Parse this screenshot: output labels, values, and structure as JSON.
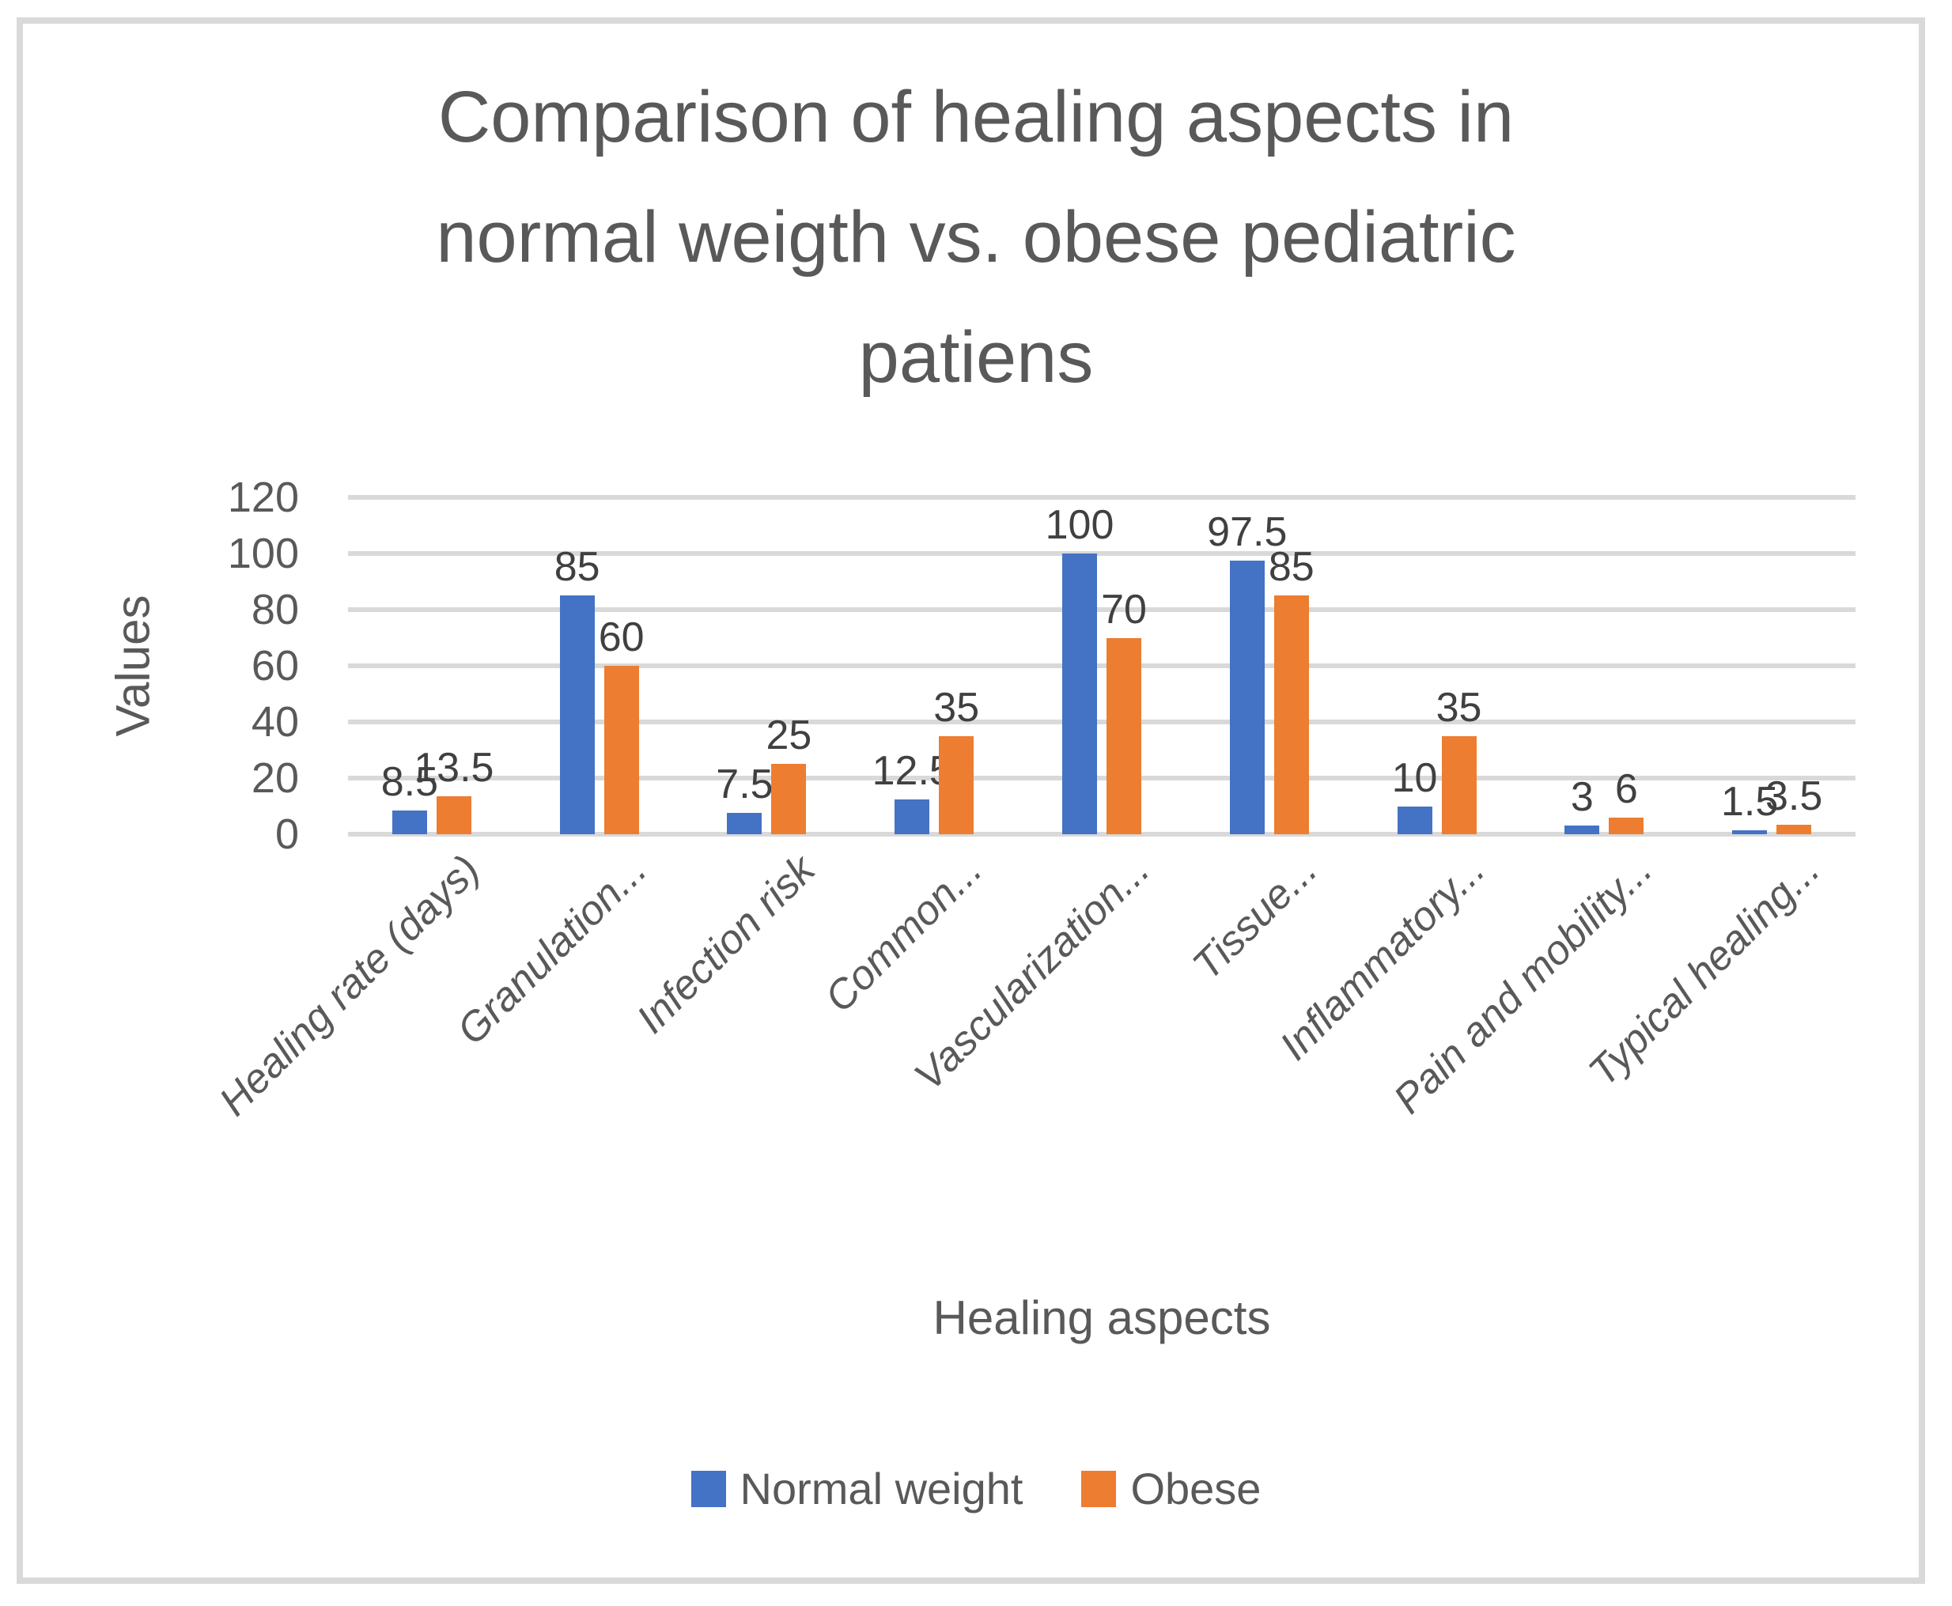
{
  "window": {
    "background": "#FFFFFF",
    "border_color": "#D9D9D9"
  },
  "title": {
    "text": "Comparison of healing aspects in normal weigth vs. obese pediatric patiens",
    "lines": [
      "Comparison of healing aspects in",
      "normal weigth vs. obese pediatric",
      "patiens"
    ]
  },
  "legend": {
    "position": "bottom",
    "items": [
      {
        "label": "Normal weight",
        "color": "#4472C4"
      },
      {
        "label": "Obese",
        "color": "#ED7D31"
      }
    ]
  },
  "colors": {
    "series_blue": "#4472C4",
    "series_orange": "#ED7D31",
    "gridline": "#D9D9D9",
    "axis_text": "#595959",
    "data_label_text": "#404040"
  },
  "chart_data": {
    "type": "bar",
    "title": "Comparison of healing aspects in normal weigth vs. obese pediatric patiens",
    "categories": [
      "Healing rate (days)",
      "Granulation...",
      "Infection risk",
      "Common...",
      "Vascularization...",
      "Tissue...",
      "Inflammatory...",
      "Pain and mobility...",
      "Typical healing..."
    ],
    "series": [
      {
        "name": "Normal weight",
        "color": "#4472C4",
        "values": [
          8.5,
          85,
          7.5,
          12.5,
          100,
          97.5,
          10,
          3,
          1.5
        ]
      },
      {
        "name": "Obese",
        "color": "#ED7D31",
        "values": [
          13.5,
          60,
          25,
          35,
          70,
          85,
          35,
          6,
          3.5
        ]
      }
    ],
    "xlabel": "Healing aspects",
    "ylabel": "Values",
    "ylim": [
      0,
      120
    ],
    "ytick_step": 20,
    "yticks": [
      0,
      20,
      40,
      60,
      80,
      100,
      120
    ],
    "grid": true,
    "data_labels_shown": true,
    "legend_position": "bottom"
  }
}
